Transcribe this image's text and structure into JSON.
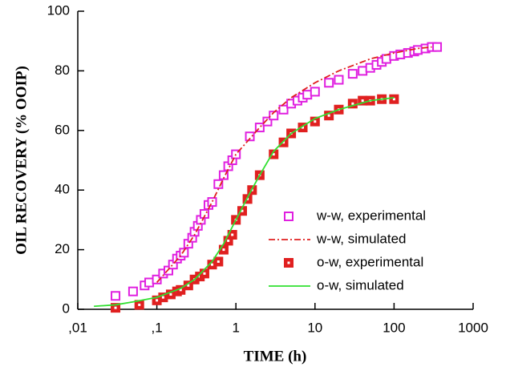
{
  "chart_data": {
    "type": "line",
    "xlabel": "TIME  (h)",
    "ylabel": "OIL  RECOVERY  (% OOIP)",
    "xscale": "log",
    "xlim": [
      0.01,
      1000
    ],
    "xticks": [
      {
        "value": 0.01,
        "label": ",01"
      },
      {
        "value": 0.1,
        "label": ",1"
      },
      1,
      10,
      100,
      1000
    ],
    "ylim": [
      0,
      100
    ],
    "yticks": [
      0,
      20,
      40,
      60,
      80,
      100
    ],
    "legend": "lower right",
    "series": [
      {
        "name": "w-w, experimental",
        "type": "scatter",
        "color": "#e020e0",
        "marker": "open-square",
        "x": [
          0.03,
          0.05,
          0.07,
          0.08,
          0.1,
          0.12,
          0.14,
          0.16,
          0.18,
          0.2,
          0.22,
          0.25,
          0.28,
          0.3,
          0.33,
          0.36,
          0.4,
          0.45,
          0.5,
          0.6,
          0.7,
          0.8,
          0.9,
          1,
          1.5,
          2,
          2.5,
          3,
          4,
          5,
          6,
          7,
          8,
          10,
          15,
          20,
          30,
          40,
          50,
          60,
          70,
          80,
          100,
          120,
          150,
          180,
          200,
          250,
          300,
          350
        ],
        "values": [
          4.5,
          6,
          8,
          9,
          10,
          12,
          13,
          15,
          17,
          18,
          19,
          22,
          24,
          26,
          28,
          30,
          32,
          35,
          36,
          42,
          45,
          48,
          50,
          52,
          58,
          61,
          63,
          65,
          67,
          69,
          70,
          71,
          72,
          73,
          76,
          77,
          79,
          80,
          81,
          82,
          83,
          84,
          85,
          85.5,
          86,
          86.5,
          87,
          87.5,
          88,
          88
        ]
      },
      {
        "name": "w-w, simulated",
        "type": "line",
        "color": "#e02020",
        "dash": "8,3,2,3",
        "x": [
          0.1,
          0.2,
          0.3,
          0.5,
          0.7,
          1,
          2,
          3,
          5,
          10,
          20,
          50,
          100,
          200,
          300
        ],
        "values": [
          9,
          18,
          25,
          36,
          44,
          52,
          61,
          66,
          71,
          76,
          80,
          84,
          86,
          87.5,
          88
        ]
      },
      {
        "name": "o-w, experimental",
        "type": "scatter",
        "color": "#e02020",
        "marker": "dotted-square",
        "x": [
          0.03,
          0.06,
          0.1,
          0.12,
          0.15,
          0.18,
          0.2,
          0.25,
          0.3,
          0.35,
          0.4,
          0.5,
          0.6,
          0.7,
          0.8,
          0.9,
          1,
          1.2,
          1.4,
          1.6,
          2,
          3,
          4,
          5,
          7,
          10,
          15,
          20,
          30,
          40,
          50,
          70,
          100
        ],
        "values": [
          0.5,
          1.5,
          3,
          4,
          5,
          6,
          6.5,
          8,
          10,
          11,
          12,
          15,
          16,
          20,
          23,
          25,
          30,
          33,
          37,
          40,
          45,
          52,
          56,
          59,
          61,
          63,
          65,
          67,
          69,
          70,
          70,
          70.5,
          70.5
        ]
      },
      {
        "name": "o-w, simulated",
        "type": "line",
        "color": "#30e030",
        "dash": "",
        "x": [
          0.016,
          0.03,
          0.05,
          0.1,
          0.2,
          0.3,
          0.5,
          0.7,
          1,
          1.5,
          2,
          3,
          5,
          10,
          20,
          50,
          100
        ],
        "values": [
          1,
          1.5,
          2.5,
          4,
          7,
          10,
          16,
          22,
          30,
          39,
          45,
          53,
          59,
          64,
          67,
          70,
          71
        ]
      }
    ]
  }
}
